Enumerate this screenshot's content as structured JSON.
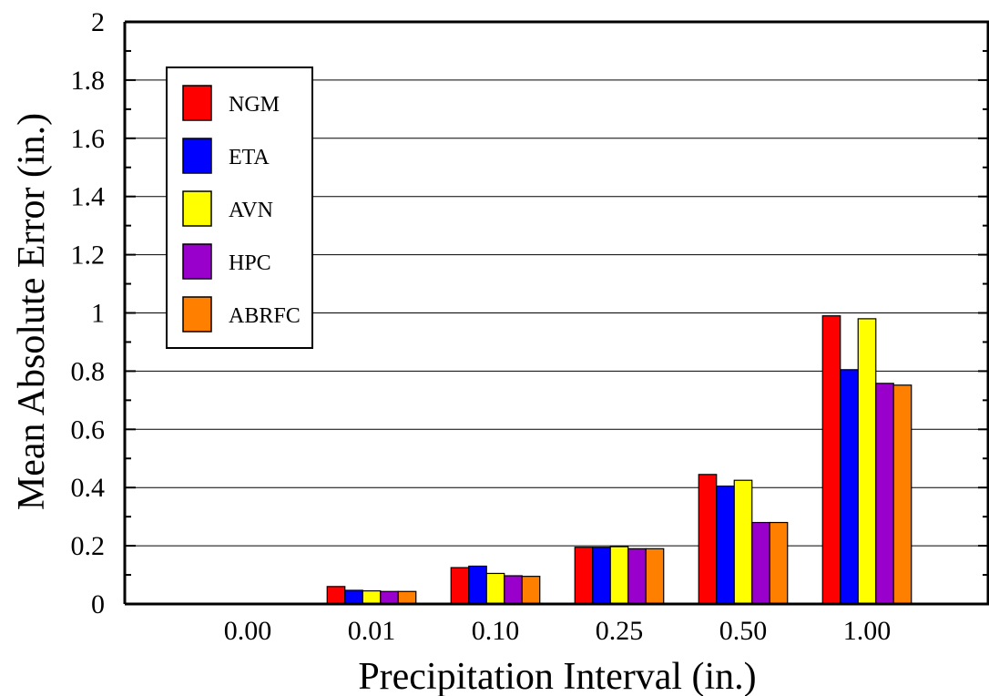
{
  "chart_data": {
    "type": "bar",
    "xlabel": "Precipitation Interval (in.)",
    "ylabel": "Mean Absolute Error (in.)",
    "ylim": [
      0,
      2
    ],
    "yticks": [
      "0",
      "0.2",
      "0.4",
      "0.6",
      "0.8",
      "1",
      "1.2",
      "1.4",
      "1.6",
      "1.8",
      "2"
    ],
    "categories": [
      "0.00",
      "0.01",
      "0.10",
      "0.25",
      "0.50",
      "1.00"
    ],
    "grid": "horizontal",
    "legend_position": "top-left",
    "series": [
      {
        "name": "NGM",
        "color": "#ff0000",
        "values": [
          0,
          0.06,
          0.125,
          0.195,
          0.445,
          0.99
        ]
      },
      {
        "name": "ETA",
        "color": "#0000ff",
        "values": [
          0,
          0.047,
          0.13,
          0.195,
          0.405,
          0.805
        ]
      },
      {
        "name": "AVN",
        "color": "#ffff00",
        "values": [
          0,
          0.045,
          0.105,
          0.197,
          0.425,
          0.98
        ]
      },
      {
        "name": "HPC",
        "color": "#9900cc",
        "values": [
          0,
          0.043,
          0.097,
          0.19,
          0.28,
          0.758
        ]
      },
      {
        "name": "ABRFC",
        "color": "#ff8000",
        "values": [
          0,
          0.043,
          0.095,
          0.19,
          0.28,
          0.752
        ]
      }
    ]
  }
}
